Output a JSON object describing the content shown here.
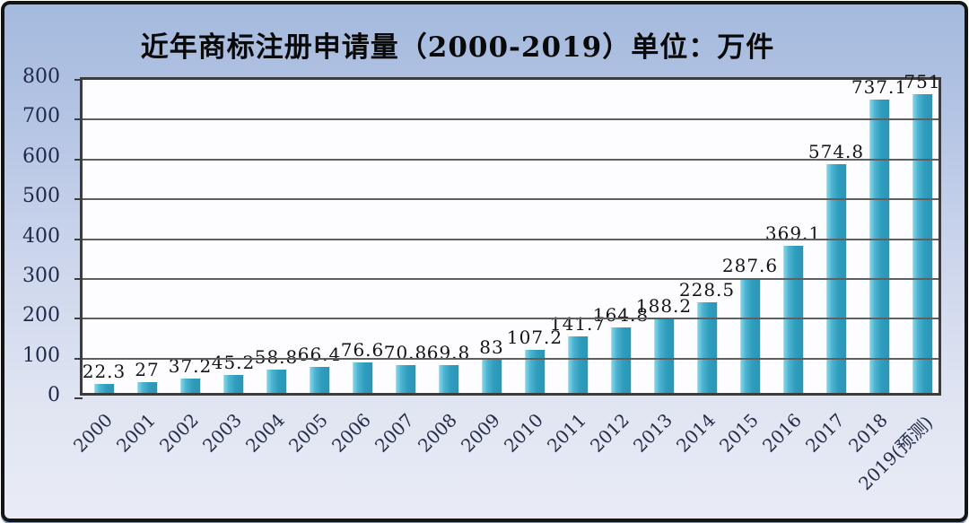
{
  "chart_data": {
    "type": "bar",
    "title": "近年商标注册申请量（2000-2019）单位：万件",
    "unit": "万件",
    "categories": [
      "2000",
      "2001",
      "2002",
      "2003",
      "2004",
      "2005",
      "2006",
      "2007",
      "2008",
      "2009",
      "2010",
      "2011",
      "2012",
      "2013",
      "2014",
      "2015",
      "2016",
      "2017",
      "2018",
      "2019(预测)"
    ],
    "values": [
      22.3,
      27,
      37.2,
      45.2,
      58.8,
      66.4,
      76.6,
      70.8,
      69.8,
      83,
      107.2,
      141.7,
      164.8,
      188.2,
      228.5,
      287.6,
      369.1,
      574.8,
      737.1,
      751
    ],
    "value_labels": [
      "22.3",
      "27",
      "37.2",
      "45.2",
      "58.8",
      "66.4",
      "76.6",
      "70.8",
      "69.8",
      "83",
      "107.2",
      "141.7",
      "164.8",
      "188.2",
      "228.5",
      "287.6",
      "369.1",
      "574.8",
      "737.1",
      "751"
    ],
    "ylim": [
      0,
      800
    ],
    "yticks": [
      0,
      100,
      200,
      300,
      400,
      500,
      600,
      700,
      800
    ],
    "grid": true,
    "legend_position": "none",
    "colors": {
      "bar": "#2e9cbe",
      "bar_highlight": "#8fd6e6",
      "plot_background": "#fdfdff",
      "frame_background_top": "#a4bade",
      "frame_background_bottom": "#e9ecf6",
      "gridline": "#5f5f5f",
      "axis_text": "#20294a",
      "value_text": "#141414",
      "title_text": "#0a0a0a"
    }
  }
}
